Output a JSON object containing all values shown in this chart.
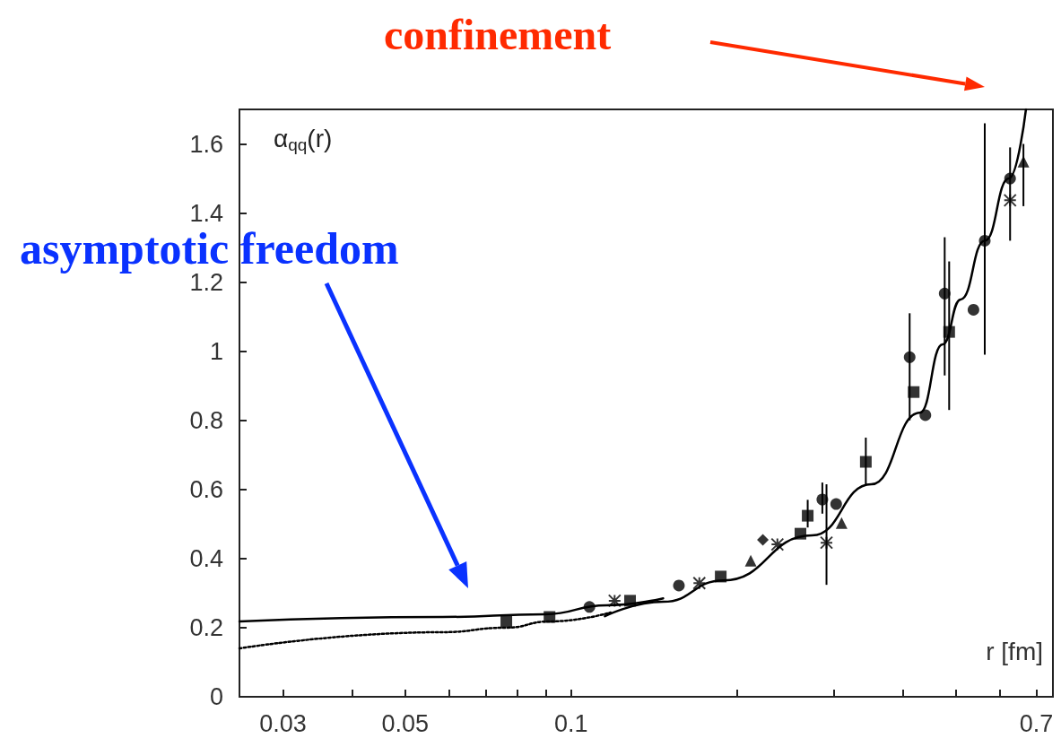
{
  "chart_data": {
    "type": "scatter",
    "ylabel": "α$_{qq}$(r)",
    "xlabel": "r [fm]",
    "log": "x",
    "xlim": [
      0.025,
      0.75
    ],
    "ylim": [
      0,
      1.7
    ],
    "xticks": [
      0.03,
      {
        "value": 0.04,
        "label": null
      },
      0.05,
      {
        "value": 0.06,
        "label": null
      },
      {
        "value": 0.07,
        "label": null
      },
      {
        "value": 0.08,
        "label": null
      },
      {
        "value": 0.09,
        "label": null
      },
      0.1,
      {
        "value": 0.2,
        "label": null
      },
      {
        "value": 0.3,
        "label": null
      },
      {
        "value": 0.4,
        "label": null
      },
      {
        "value": 0.5,
        "label": null
      },
      {
        "value": 0.6,
        "label": null
      },
      0.7
    ],
    "yticks": [
      0,
      0.2,
      0.4,
      0.6,
      0.8,
      1,
      1.2,
      1.4,
      1.6
    ],
    "grid": false,
    "annotations": [
      "confinement",
      "asymptotic freedom"
    ],
    "series": [
      {
        "type": "line",
        "color": "#000000",
        "line_style": "solid",
        "marker": "none",
        "x": [
          0.025,
          0.0584,
          0.0897,
          0.116,
          0.147
        ],
        "values": [
          0.218,
          0.231,
          0.239,
          0.265,
          0.285
        ]
      },
      {
        "type": "line",
        "color": "#000000",
        "line_style": "dotted",
        "marker": "none",
        "x": [
          0.025,
          0.0584,
          0.0763,
          0.0914,
          0.118
        ],
        "values": [
          0.14,
          0.187,
          0.2,
          0.218,
          0.244
        ]
      },
      {
        "type": "line",
        "color": "#000000",
        "line_style": "solid",
        "marker": "none",
        "x": [
          0.1152,
          0.147,
          0.189,
          0.274,
          0.351,
          0.43,
          0.473,
          0.51,
          0.564,
          0.624,
          0.67
        ],
        "values": [
          0.233,
          0.275,
          0.337,
          0.467,
          0.615,
          0.822,
          1.02,
          1.15,
          1.32,
          1.5,
          1.7
        ]
      },
      {
        "color": "#000000",
        "marker": "circle",
        "x": [
          0.108,
          0.157,
          0.286,
          0.303,
          0.412,
          0.44,
          0.477,
          0.538,
          0.564,
          0.627
        ],
        "values": [
          0.26,
          0.322,
          0.571,
          0.558,
          0.983,
          0.815,
          1.167,
          1.12,
          1.32,
          1.5
        ],
        "errors": [
          null,
          null,
          [
            0.53,
            0.62
          ],
          null,
          [
            0.8,
            1.11
          ],
          null,
          [
            0.93,
            1.33
          ],
          null,
          [
            0.99,
            1.66
          ],
          [
            1.32,
            1.59
          ]
        ]
      },
      {
        "color": "#000000",
        "marker": "square",
        "x": [
          0.0763,
          0.0914,
          0.128,
          0.187,
          0.261,
          0.269,
          0.343,
          0.419,
          0.486
        ],
        "values": [
          0.218,
          0.231,
          0.278,
          0.348,
          0.472,
          0.524,
          0.68,
          0.882,
          1.056
        ],
        "errors": [
          null,
          null,
          null,
          null,
          null,
          [
            0.49,
            0.57
          ],
          [
            0.61,
            0.75
          ],
          null,
          [
            0.83,
            1.26
          ]
        ]
      },
      {
        "color": "#000000",
        "marker": "triangle",
        "x": [
          0.212,
          0.31,
          0.663
        ],
        "values": [
          0.394,
          0.503,
          1.549
        ],
        "errors": [
          null,
          null,
          [
            1.42,
            1.6
          ]
        ]
      },
      {
        "color": "#000000",
        "marker": "diamond",
        "x": [
          0.223
        ],
        "values": [
          0.454
        ]
      },
      {
        "color": "#000000",
        "marker": "cross",
        "x": [
          0.12,
          0.171,
          0.237,
          0.291,
          0.627
        ],
        "values": [
          0.278,
          0.329,
          0.441,
          0.446,
          1.437
        ],
        "errors": [
          null,
          null,
          null,
          [
            0.324,
            0.615
          ],
          null
        ]
      }
    ]
  }
}
